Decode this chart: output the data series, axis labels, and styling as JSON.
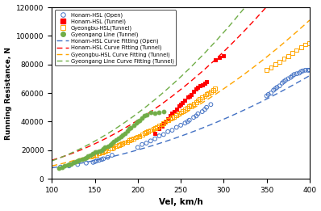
{
  "xlabel": "Vel, km/h",
  "ylabel": "Running Resistance, N",
  "xlim": [
    100,
    400
  ],
  "ylim": [
    0,
    120000
  ],
  "yticks": [
    0,
    20000,
    40000,
    60000,
    80000,
    100000,
    120000
  ],
  "xticks": [
    100,
    150,
    200,
    250,
    300,
    350,
    400
  ],
  "honam_open_scatter": [
    [
      110,
      8200
    ],
    [
      120,
      9000
    ],
    [
      130,
      10000
    ],
    [
      140,
      11000
    ],
    [
      148,
      11500
    ],
    [
      150,
      12000
    ],
    [
      152,
      12500
    ],
    [
      155,
      13000
    ],
    [
      158,
      13500
    ],
    [
      160,
      14000
    ],
    [
      165,
      15000
    ],
    [
      170,
      16500
    ],
    [
      200,
      22000
    ],
    [
      205,
      24000
    ],
    [
      210,
      25000
    ],
    [
      215,
      26500
    ],
    [
      220,
      28000
    ],
    [
      225,
      30000
    ],
    [
      230,
      31000
    ],
    [
      235,
      33000
    ],
    [
      240,
      34000
    ],
    [
      245,
      36000
    ],
    [
      250,
      37500
    ],
    [
      255,
      39000
    ],
    [
      258,
      40000
    ],
    [
      260,
      41000
    ],
    [
      265,
      43000
    ],
    [
      268,
      44000
    ],
    [
      270,
      45500
    ],
    [
      275,
      47000
    ],
    [
      278,
      48500
    ],
    [
      280,
      50000
    ],
    [
      285,
      52000
    ],
    [
      350,
      58000
    ],
    [
      352,
      59000
    ],
    [
      355,
      60000
    ],
    [
      358,
      62000
    ],
    [
      360,
      63000
    ],
    [
      362,
      64000
    ],
    [
      365,
      65000
    ],
    [
      368,
      67000
    ],
    [
      370,
      68000
    ],
    [
      372,
      69000
    ],
    [
      375,
      70000
    ],
    [
      378,
      71000
    ],
    [
      380,
      72000
    ],
    [
      382,
      73000
    ],
    [
      385,
      73500
    ],
    [
      388,
      74000
    ],
    [
      390,
      75000
    ],
    [
      392,
      75500
    ],
    [
      395,
      76000
    ],
    [
      398,
      76000
    ],
    [
      400,
      76000
    ]
  ],
  "honam_tunnel_scatter": [
    [
      220,
      32000
    ],
    [
      225,
      35000
    ],
    [
      228,
      37000
    ],
    [
      230,
      39000
    ],
    [
      232,
      40000
    ],
    [
      235,
      42000
    ],
    [
      238,
      44000
    ],
    [
      240,
      46000
    ],
    [
      242,
      47000
    ],
    [
      245,
      49000
    ],
    [
      248,
      51000
    ],
    [
      250,
      52000
    ],
    [
      252,
      53000
    ],
    [
      255,
      55000
    ],
    [
      258,
      57000
    ],
    [
      260,
      58000
    ],
    [
      262,
      59000
    ],
    [
      265,
      61000
    ],
    [
      268,
      63000
    ],
    [
      270,
      64000
    ],
    [
      272,
      65000
    ],
    [
      275,
      66000
    ],
    [
      278,
      67000
    ],
    [
      280,
      68000
    ],
    [
      290,
      83000
    ],
    [
      295,
      85000
    ],
    [
      300,
      86000
    ]
  ],
  "gyeongbu_tunnel_scatter": [
    [
      145,
      15500
    ],
    [
      148,
      16000
    ],
    [
      150,
      16500
    ],
    [
      152,
      17000
    ],
    [
      155,
      18000
    ],
    [
      158,
      18500
    ],
    [
      160,
      19000
    ],
    [
      162,
      19500
    ],
    [
      165,
      20000
    ],
    [
      168,
      21000
    ],
    [
      170,
      21500
    ],
    [
      172,
      22000
    ],
    [
      175,
      23000
    ],
    [
      178,
      23500
    ],
    [
      180,
      24000
    ],
    [
      182,
      24500
    ],
    [
      185,
      25500
    ],
    [
      188,
      26000
    ],
    [
      190,
      27000
    ],
    [
      192,
      27500
    ],
    [
      195,
      28000
    ],
    [
      198,
      29000
    ],
    [
      200,
      29500
    ],
    [
      202,
      30000
    ],
    [
      205,
      31000
    ],
    [
      208,
      32000
    ],
    [
      210,
      32500
    ],
    [
      212,
      33000
    ],
    [
      215,
      34000
    ],
    [
      218,
      35000
    ],
    [
      220,
      35500
    ],
    [
      222,
      36000
    ],
    [
      225,
      37000
    ],
    [
      228,
      38000
    ],
    [
      230,
      39000
    ],
    [
      232,
      40000
    ],
    [
      235,
      41000
    ],
    [
      238,
      42000
    ],
    [
      240,
      43000
    ],
    [
      242,
      43500
    ],
    [
      245,
      44500
    ],
    [
      248,
      45500
    ],
    [
      250,
      46500
    ],
    [
      252,
      47500
    ],
    [
      255,
      48500
    ],
    [
      258,
      49500
    ],
    [
      260,
      50500
    ],
    [
      262,
      51500
    ],
    [
      265,
      52500
    ],
    [
      268,
      53500
    ],
    [
      270,
      55000
    ],
    [
      272,
      56000
    ],
    [
      275,
      57000
    ],
    [
      278,
      58000
    ],
    [
      280,
      59000
    ],
    [
      282,
      60000
    ],
    [
      285,
      61000
    ],
    [
      288,
      62000
    ],
    [
      290,
      63000
    ],
    [
      350,
      76000
    ],
    [
      355,
      78000
    ],
    [
      360,
      80000
    ],
    [
      365,
      82000
    ],
    [
      370,
      84000
    ],
    [
      375,
      86000
    ],
    [
      380,
      88000
    ],
    [
      385,
      90000
    ],
    [
      390,
      92000
    ],
    [
      395,
      94000
    ],
    [
      400,
      95000
    ]
  ],
  "gyeongang_tunnel_scatter": [
    [
      108,
      7500
    ],
    [
      112,
      8200
    ],
    [
      115,
      9000
    ],
    [
      118,
      9500
    ],
    [
      120,
      10000
    ],
    [
      122,
      10500
    ],
    [
      125,
      11200
    ],
    [
      128,
      12000
    ],
    [
      130,
      12500
    ],
    [
      132,
      13000
    ],
    [
      135,
      13800
    ],
    [
      138,
      14500
    ],
    [
      140,
      15000
    ],
    [
      142,
      15800
    ],
    [
      145,
      16500
    ],
    [
      148,
      17500
    ],
    [
      150,
      18500
    ],
    [
      152,
      19000
    ],
    [
      155,
      19500
    ],
    [
      158,
      20000
    ],
    [
      160,
      21000
    ],
    [
      162,
      22000
    ],
    [
      165,
      23000
    ],
    [
      168,
      24000
    ],
    [
      170,
      25000
    ],
    [
      172,
      26000
    ],
    [
      175,
      27000
    ],
    [
      178,
      28500
    ],
    [
      180,
      29500
    ],
    [
      182,
      30500
    ],
    [
      185,
      32000
    ],
    [
      188,
      33500
    ],
    [
      190,
      35000
    ],
    [
      192,
      36000
    ],
    [
      195,
      37500
    ],
    [
      198,
      39000
    ],
    [
      200,
      40000
    ],
    [
      202,
      41000
    ],
    [
      205,
      42500
    ],
    [
      208,
      44000
    ],
    [
      210,
      45000
    ],
    [
      215,
      46500
    ],
    [
      220,
      46000
    ],
    [
      225,
      46500
    ],
    [
      230,
      47000
    ]
  ],
  "colors": {
    "honam_open": "#4472C4",
    "honam_tunnel": "#FF0000",
    "gyeongbu_tunnel": "#FFA500",
    "gyeongang_tunnel": "#70AD47",
    "fit_open": "#4472C4",
    "fit_honam_tunnel": "#FF0000",
    "fit_gyeongbu": "#FFA500",
    "fit_gyeongang": "#70AD47"
  },
  "fit_coeffs": {
    "open": [
      4200,
      -10.0,
      0.45
    ],
    "honam_t": [
      5000,
      -20.0,
      1.0
    ],
    "gyeongbu": [
      3000,
      -10.0,
      0.7
    ],
    "gyeongang": [
      2000,
      -10.0,
      1.15
    ]
  },
  "legend_labels": [
    "Honam-HSL (Open)",
    "Honam-HSL (Tunnel)",
    "Gyeongbu-HSL(Tunnel)",
    "Gyeongang Line (Tunnel)",
    "Honam-HSL Curve Fitting (Open)",
    "Honam-HSL Curve Fitting (Tunnel)",
    "Gyeongbu-HSL Curve Fitting (Tunnel)",
    "Gyeongang Line Curve Fitting (Tunnel)"
  ]
}
